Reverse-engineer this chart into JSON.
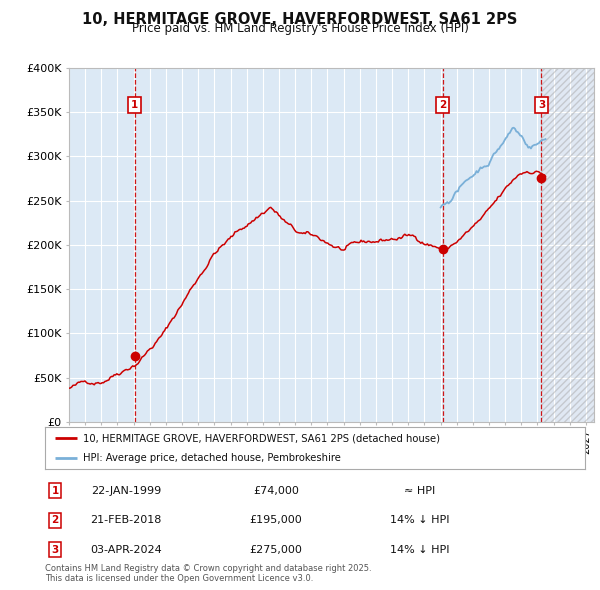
{
  "title": "10, HERMITAGE GROVE, HAVERFORDWEST, SA61 2PS",
  "subtitle": "Price paid vs. HM Land Registry's House Price Index (HPI)",
  "ylim": [
    0,
    400000
  ],
  "xlim_start": 1995.0,
  "xlim_end": 2027.5,
  "yticks": [
    0,
    50000,
    100000,
    150000,
    200000,
    250000,
    300000,
    350000,
    400000
  ],
  "ytick_labels": [
    "£0",
    "£50K",
    "£100K",
    "£150K",
    "£200K",
    "£250K",
    "£300K",
    "£350K",
    "£400K"
  ],
  "background_color": "#ffffff",
  "plot_bg_color": "#dce9f5",
  "grid_color": "#ffffff",
  "red_line_color": "#cc0000",
  "blue_line_color": "#7ab0d8",
  "vline_color": "#cc0000",
  "sale1_year": 1999.06,
  "sale1_price": 74000,
  "sale2_year": 2018.13,
  "sale2_price": 195000,
  "sale3_year": 2024.25,
  "sale3_price": 275000,
  "legend_line1": "10, HERMITAGE GROVE, HAVERFORDWEST, SA61 2PS (detached house)",
  "legend_line2": "HPI: Average price, detached house, Pembrokeshire",
  "footnote": "Contains HM Land Registry data © Crown copyright and database right 2025.\nThis data is licensed under the Open Government Licence v3.0.",
  "table_rows": [
    {
      "num": "1",
      "date": "22-JAN-1999",
      "price": "£74,000",
      "hpi": "≈ HPI"
    },
    {
      "num": "2",
      "date": "21-FEB-2018",
      "price": "£195,000",
      "hpi": "14% ↓ HPI"
    },
    {
      "num": "3",
      "date": "03-APR-2024",
      "price": "£275,000",
      "hpi": "14% ↓ HPI"
    }
  ]
}
